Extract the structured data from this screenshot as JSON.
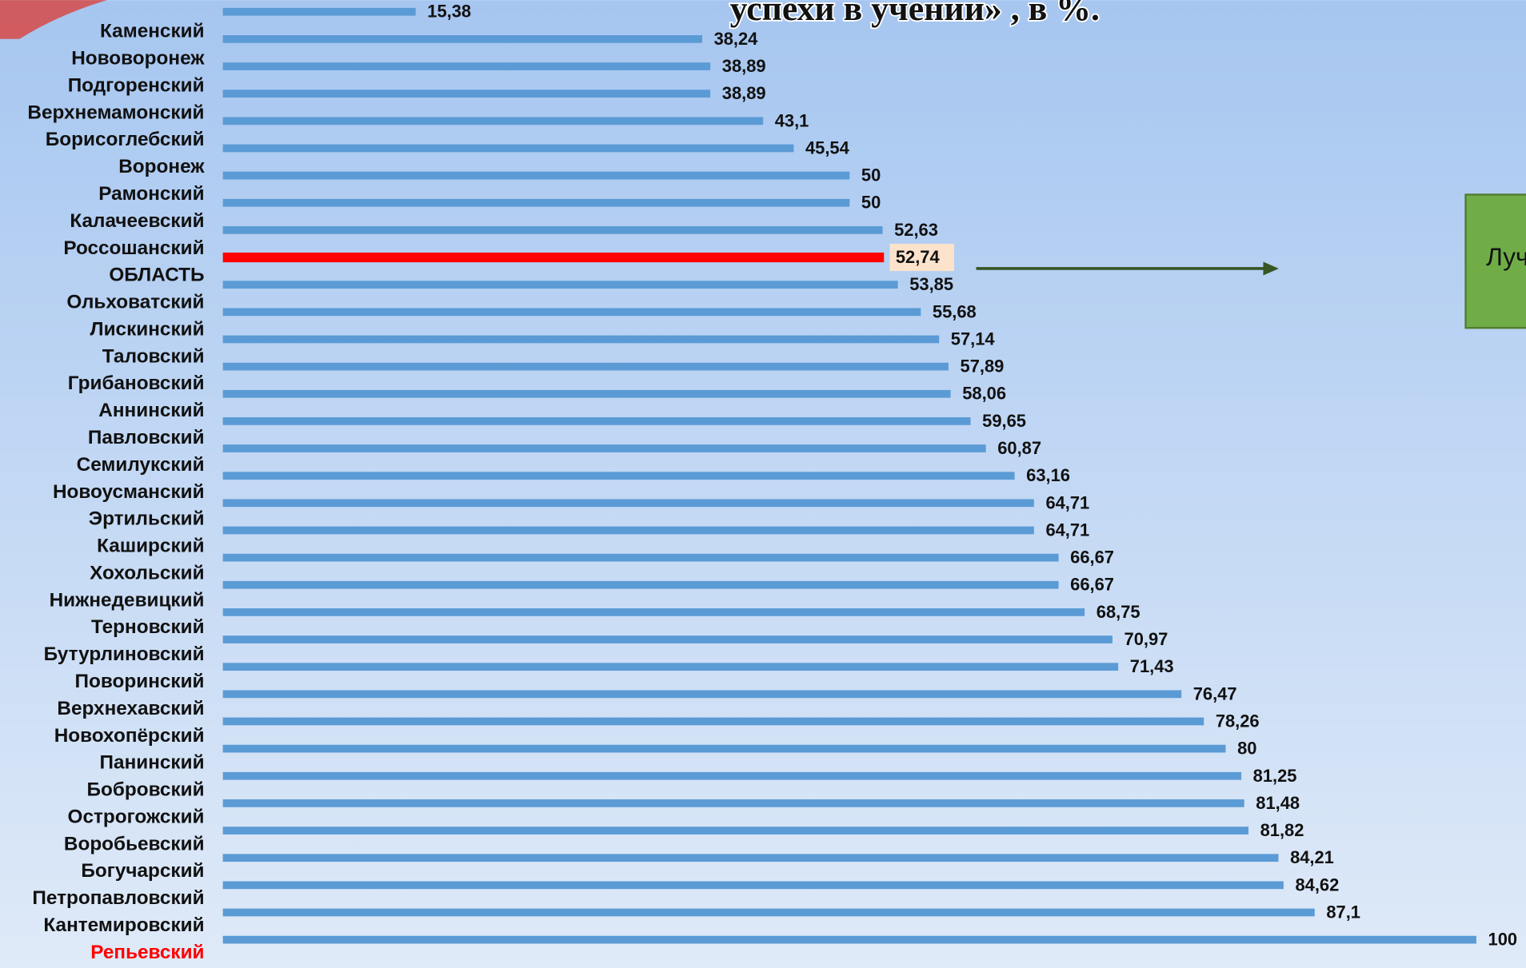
{
  "chart_data": {
    "type": "hbar",
    "title": "успехи в учении» , в %.",
    "categories": [
      "Каменский",
      "Нововоронеж",
      "Подгоренский",
      "Верхнемамонский",
      "Борисоглебский",
      "Воронеж",
      "Рамонский",
      "Калачеевский",
      "Россошанский",
      "ОБЛАСТЬ",
      "Ольховатский",
      "Лискинский",
      "Таловский",
      "Грибановский",
      "Аннинский",
      "Павловский",
      "Семилукский",
      "Новоусманский",
      "Эртильский",
      "Каширский",
      "Хохольский",
      "Нижнедевицкий",
      "Терновский",
      "Бутурлиновский",
      "Поворинский",
      "Верхнехавский",
      "Новохопёрский",
      "Панинский",
      "Бобровский",
      "Острогожский",
      "Воробьевский",
      "Богучарский",
      "Петропавловский",
      "Кантемировский",
      "Репьевский"
    ],
    "values": [
      15.38,
      38.24,
      38.89,
      38.89,
      43.1,
      45.54,
      50,
      50,
      52.63,
      52.74,
      53.85,
      55.68,
      57.14,
      57.89,
      58.06,
      59.65,
      60.87,
      63.16,
      64.71,
      64.71,
      66.67,
      66.67,
      68.75,
      70.97,
      71.43,
      76.47,
      78.26,
      80,
      81.25,
      81.48,
      81.82,
      84.21,
      84.62,
      87.1,
      100
    ],
    "value_labels": [
      "15,38",
      "38,24",
      "38,89",
      "38,89",
      "43,1",
      "45,54",
      "50",
      "50",
      "52,63",
      "52,74",
      "53,85",
      "55,68",
      "57,14",
      "57,89",
      "58,06",
      "59,65",
      "60,87",
      "63,16",
      "64,71",
      "64,71",
      "66,67",
      "66,67",
      "68,75",
      "70,97",
      "71,43",
      "76,47",
      "78,26",
      "80",
      "81,25",
      "81,48",
      "81,82",
      "84,21",
      "84,62",
      "87,1",
      "100"
    ],
    "color": "#5b9bd5",
    "highlight_color": "#ff0000",
    "highlight_bar": "ОБЛАСТЬ",
    "highlight_label": "Репьевский",
    "xlim": [
      0,
      100
    ],
    "side_box": {
      "text": "Луч",
      "color": "#70ad47"
    }
  }
}
